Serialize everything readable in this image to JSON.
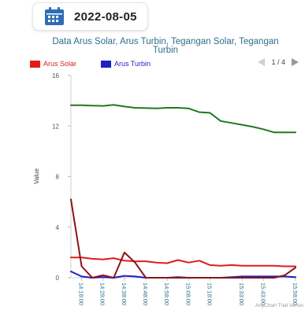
{
  "date_picker": {
    "date": "2022-08-05",
    "icon": "calendar-icon",
    "icon_color": "#2f6db5"
  },
  "pager": {
    "text": "1 / 4",
    "prev_icon": "triangle-left-icon",
    "next_icon": "triangle-right-icon"
  },
  "credit": "AnyChart Trial Versio",
  "colors": {
    "arus_solar": "#e11b1b",
    "arus_turbin": "#1f1fc7",
    "tegangan_solar": "#1e7b1e",
    "tegangan_turbin": "#8b1414"
  },
  "chart_data": {
    "type": "line",
    "title": "Data Arus Solar, Arus Turbin, Tegangan Solar, Tegangan Turbin",
    "xlabel": "",
    "ylabel": "Value",
    "ylim": [
      0,
      16
    ],
    "y_ticks": [
      "0",
      "4",
      "8",
      "12",
      "16"
    ],
    "grid": false,
    "legend_position": "top-left",
    "x": [
      "14:13:00",
      "14:18:00",
      "14:23:00",
      "14:28:00",
      "14:33:00",
      "14:38:00",
      "14:43:00",
      "14:48:00",
      "14:53:00",
      "14:58:00",
      "15:03:00",
      "15:08:00",
      "15:13:00",
      "15:18:00",
      "15:23:00",
      "15:28:00",
      "15:33:00",
      "15:38:00",
      "15:43:00",
      "15:48:00",
      "15:53:00",
      "15:58:00"
    ],
    "x_tick_labels": [
      "14:18:00",
      "14:28:00",
      "14:38:00",
      "14:48:00",
      "14:58:00",
      "15:08:00",
      "15:18:00",
      "15:33:00",
      "15:43:00",
      "15:58:00"
    ],
    "series": [
      {
        "name": "Arus Solar",
        "legend": true,
        "color": "#e11b1b",
        "values": [
          1.6,
          1.6,
          1.5,
          1.45,
          1.55,
          1.35,
          1.3,
          1.3,
          1.2,
          1.15,
          1.4,
          1.2,
          1.35,
          1.0,
          0.95,
          1.0,
          0.95,
          0.95,
          0.95,
          0.95,
          0.9,
          0.9
        ]
      },
      {
        "name": "Arus Turbin",
        "legend": true,
        "color": "#1f1fc7",
        "values": [
          0.5,
          0.1,
          0.0,
          0.05,
          0.0,
          0.15,
          0.1,
          0.0,
          0.0,
          0.0,
          0.05,
          0.0,
          0.0,
          0.0,
          0.0,
          0.05,
          0.1,
          0.1,
          0.1,
          0.1,
          0.1,
          0.05
        ]
      },
      {
        "legend": false,
        "color": "#1e7b1e",
        "values": [
          13.65,
          13.65,
          13.62,
          13.6,
          13.68,
          13.55,
          13.45,
          13.42,
          13.4,
          13.45,
          13.45,
          13.4,
          13.1,
          13.05,
          12.4,
          12.25,
          12.1,
          11.95,
          11.75,
          11.5,
          11.5,
          11.5
        ]
      },
      {
        "legend": false,
        "color": "#8b1414",
        "values": [
          6.2,
          0.9,
          0.0,
          0.2,
          0.0,
          2.0,
          1.2,
          0.0,
          0.0,
          0.0,
          0.0,
          0.0,
          0.0,
          0.0,
          0.0,
          0.0,
          0.0,
          0.0,
          0.0,
          0.0,
          0.2,
          0.8
        ]
      }
    ]
  }
}
